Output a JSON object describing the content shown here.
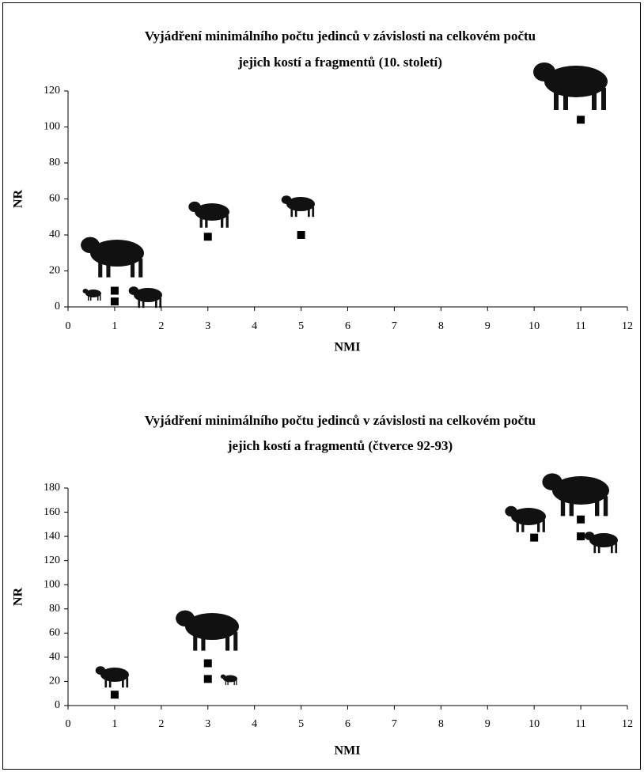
{
  "chart_data": [
    {
      "type": "scatter",
      "title": [
        "Vyjádření minimálního počtu jedinců v závislosti na celkovém počtu",
        "jejich kostí a fragmentů (10. století)"
      ],
      "x_label": "NMI",
      "y_label": "NR",
      "x": [
        1,
        1,
        3,
        5,
        11
      ],
      "values": [
        9,
        3,
        39,
        40,
        104
      ],
      "color": "#000000",
      "xlim": [
        0,
        12
      ],
      "xticks": [
        0,
        1,
        2,
        3,
        4,
        5,
        6,
        7,
        8,
        9,
        10,
        11,
        12
      ],
      "ylim": [
        0,
        120
      ],
      "yticks": [
        0,
        20,
        40,
        60,
        80,
        100,
        120
      ]
    },
    {
      "type": "scatter",
      "title": [
        "Vyjádření minimálního počtu jedinců v závislosti na celkovém počtu",
        "jejich kostí a fragmentů (čtverce 92-93)"
      ],
      "x_label": "NMI",
      "y_label": "NR",
      "x": [
        1,
        3,
        3,
        10,
        11,
        11
      ],
      "values": [
        9,
        35,
        22,
        139,
        154,
        140
      ],
      "color": "#000000",
      "xlim": [
        0,
        12
      ],
      "xticks": [
        0,
        1,
        2,
        3,
        4,
        5,
        6,
        7,
        8,
        9,
        10,
        11,
        12
      ],
      "ylim": [
        0,
        180
      ],
      "yticks": [
        0,
        20,
        40,
        60,
        80,
        100,
        120,
        140,
        160,
        180
      ]
    }
  ]
}
